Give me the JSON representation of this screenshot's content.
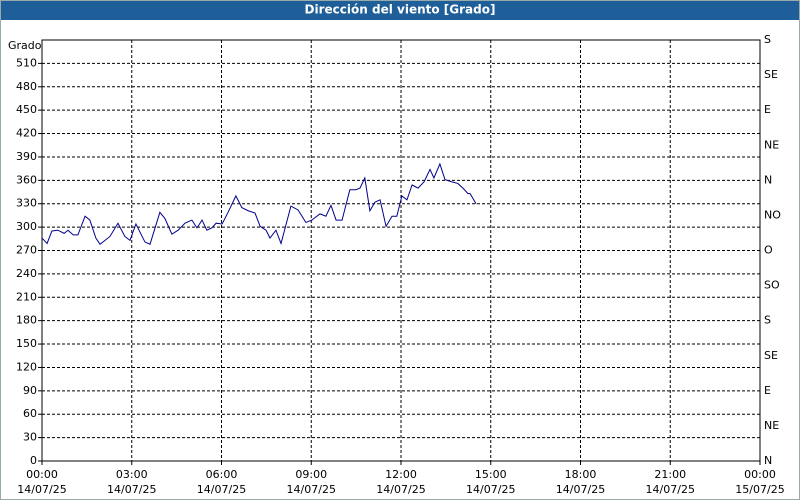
{
  "chart_data": {
    "type": "line",
    "title": "Dirección del viento [Grado]",
    "y_label": "Grado",
    "x": [
      0,
      0.17,
      0.33,
      0.53,
      0.74,
      0.87,
      1.04,
      1.2,
      1.44,
      1.6,
      1.8,
      1.94,
      2.27,
      2.54,
      2.77,
      2.94,
      3.14,
      3.44,
      3.61,
      3.94,
      4.11,
      4.34,
      4.55,
      4.78,
      5.01,
      5.18,
      5.35,
      5.51,
      5.68,
      5.82,
      6.02,
      6.22,
      6.48,
      6.68,
      6.89,
      7.12,
      7.29,
      7.49,
      7.62,
      7.82,
      7.99,
      8.32,
      8.56,
      8.82,
      9.02,
      9.29,
      9.49,
      9.66,
      9.83,
      10.03,
      10.29,
      10.49,
      10.63,
      10.79,
      10.96,
      11.13,
      11.3,
      11.5,
      11.7,
      11.86,
      12.03,
      12.2,
      12.37,
      12.57,
      12.77,
      12.97,
      13.1,
      13.3,
      13.47,
      13.7,
      13.9,
      14.07,
      14.24,
      14.31,
      14.51
    ],
    "series": [
      {
        "name": "Dirección del viento",
        "color": "#00008b",
        "values": [
          286,
          279,
          295,
          296,
          292,
          296,
          290,
          290,
          314,
          309,
          286,
          278,
          288,
          305,
          288,
          283,
          304,
          281,
          278,
          319,
          311,
          291,
          296,
          305,
          309,
          299,
          309,
          296,
          299,
          305,
          304,
          319,
          340,
          325,
          321,
          318,
          301,
          296,
          286,
          296,
          279,
          327,
          322,
          306,
          309,
          317,
          314,
          328,
          309,
          309,
          348,
          348,
          350,
          363,
          321,
          332,
          335,
          301,
          314,
          314,
          340,
          335,
          354,
          350,
          358,
          374,
          363,
          381,
          361,
          358,
          356,
          350,
          343,
          343,
          330
        ]
      }
    ],
    "xlim": [
      0,
      24
    ],
    "xticks": [
      {
        "value": 0,
        "label": "00:00",
        "date": "14/07/25"
      },
      {
        "value": 3,
        "label": "03:00",
        "date": "14/07/25"
      },
      {
        "value": 6,
        "label": "06:00",
        "date": "14/07/25"
      },
      {
        "value": 9,
        "label": "09:00",
        "date": "14/07/25"
      },
      {
        "value": 12,
        "label": "12:00",
        "date": "14/07/25"
      },
      {
        "value": 15,
        "label": "15:00",
        "date": "14/07/25"
      },
      {
        "value": 18,
        "label": "18:00",
        "date": "14/07/25"
      },
      {
        "value": 21,
        "label": "21:00",
        "date": "14/07/25"
      },
      {
        "value": 24,
        "label": "00:00",
        "date": "15/07/25"
      }
    ],
    "ylim": [
      0,
      540
    ],
    "yticks": [
      0,
      30,
      60,
      90,
      120,
      150,
      180,
      210,
      240,
      270,
      300,
      330,
      360,
      390,
      420,
      450,
      480,
      510
    ],
    "y2lim": [
      0,
      540
    ],
    "y2ticks": [
      {
        "value": 0,
        "label": "N"
      },
      {
        "value": 45,
        "label": "NE"
      },
      {
        "value": 90,
        "label": "E"
      },
      {
        "value": 135,
        "label": "SE"
      },
      {
        "value": 180,
        "label": "S"
      },
      {
        "value": 225,
        "label": "SO"
      },
      {
        "value": 270,
        "label": "O"
      },
      {
        "value": 315,
        "label": "NO"
      },
      {
        "value": 360,
        "label": "N"
      },
      {
        "value": 405,
        "label": "NE"
      },
      {
        "value": 450,
        "label": "E"
      },
      {
        "value": 495,
        "label": "SE"
      },
      {
        "value": 540,
        "label": "S"
      }
    ],
    "grid": true
  }
}
